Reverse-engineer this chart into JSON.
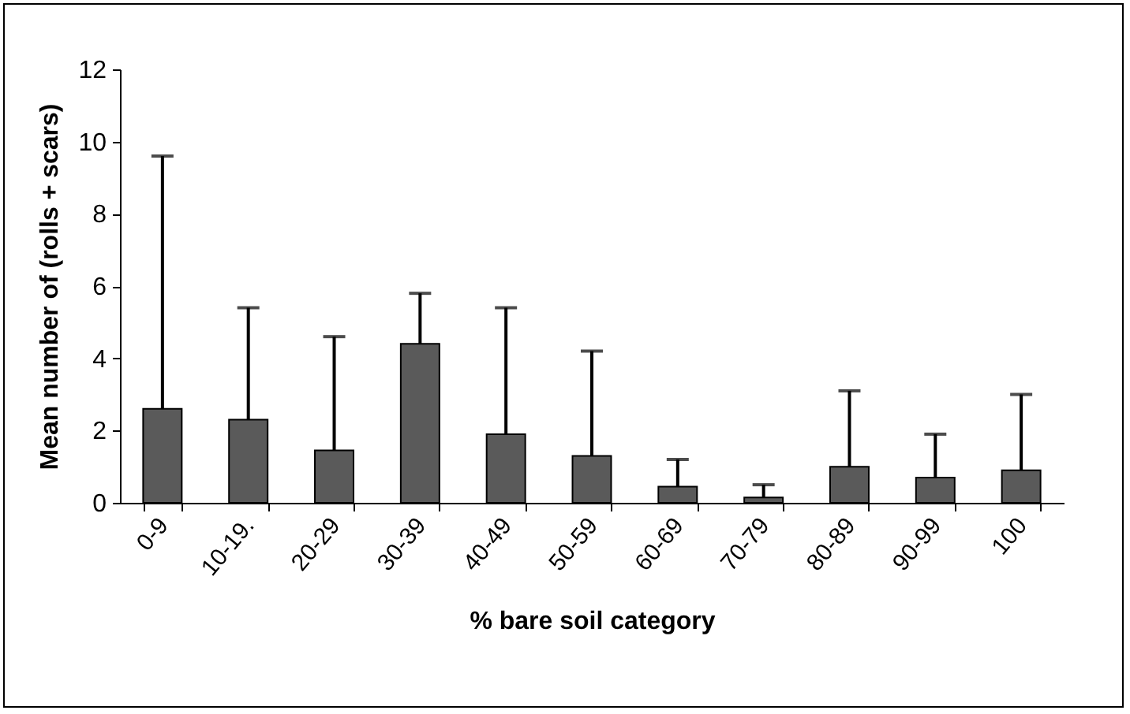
{
  "chart_data": {
    "type": "bar",
    "xlabel": "% bare soil category",
    "ylabel": "Mean number of (rolls + scars)",
    "categories": [
      "0-9",
      "10-19.",
      "20-29",
      "30-39",
      "40-49",
      "50-59",
      "60-69",
      "70-79",
      "80-89",
      "90-99",
      "100"
    ],
    "values": [
      2.6,
      2.3,
      1.45,
      4.4,
      1.9,
      1.3,
      0.45,
      0.15,
      1.0,
      0.7,
      0.9
    ],
    "errors": [
      [
        2.6,
        9.6
      ],
      [
        2.3,
        5.4
      ],
      [
        1.45,
        4.6
      ],
      [
        4.4,
        5.8
      ],
      [
        1.9,
        5.4
      ],
      [
        1.3,
        4.2
      ],
      [
        0.45,
        1.2
      ],
      [
        0.15,
        0.5
      ],
      [
        1.0,
        3.1
      ],
      [
        0.7,
        1.9
      ],
      [
        0.9,
        3.0
      ]
    ],
    "color": "#5a5a5a",
    "ylim": [
      0,
      12
    ],
    "yticks": [
      0,
      2,
      4,
      6,
      8,
      10,
      12
    ],
    "grid": false
  }
}
